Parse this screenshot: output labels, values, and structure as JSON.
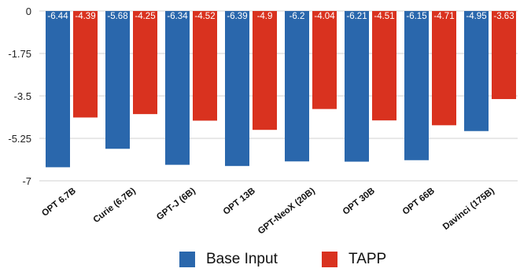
{
  "chart_data": {
    "type": "bar",
    "categories": [
      "OPT 6.7B",
      "Curie (6.7B)",
      "GPT-J (6B)",
      "OPT 13B",
      "GPT-NeoX (20B)",
      "OPT 30B",
      "OPT 66B",
      "Davinci (175B)"
    ],
    "series": [
      {
        "name": "Base Input",
        "color": "#2a67ac",
        "values": [
          -6.44,
          -5.68,
          -6.34,
          -6.39,
          -6.2,
          -6.21,
          -6.15,
          -4.95
        ]
      },
      {
        "name": "TAPP",
        "color": "#d9321f",
        "values": [
          -4.39,
          -4.25,
          -4.52,
          -4.9,
          -4.04,
          -4.51,
          -4.71,
          -3.63
        ]
      }
    ],
    "yticks": [
      "0",
      "-1.75",
      "-3.5",
      "-5.25",
      "-7"
    ],
    "ylim": [
      -7,
      0
    ],
    "grid": true,
    "legend_position": "bottom"
  }
}
